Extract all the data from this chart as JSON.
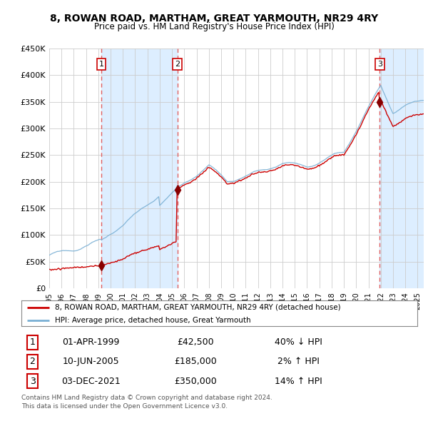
{
  "title": "8, ROWAN ROAD, MARTHAM, GREAT YARMOUTH, NR29 4RY",
  "subtitle": "Price paid vs. HM Land Registry's House Price Index (HPI)",
  "ylim": [
    0,
    450000
  ],
  "yticks": [
    0,
    50000,
    100000,
    150000,
    200000,
    250000,
    300000,
    350000,
    400000,
    450000
  ],
  "ytick_labels": [
    "£0",
    "£50K",
    "£100K",
    "£150K",
    "£200K",
    "£250K",
    "£300K",
    "£350K",
    "£400K",
    "£450K"
  ],
  "xlim": [
    1995,
    2025.5
  ],
  "sales": [
    {
      "date_num": 1999.25,
      "price": 42500,
      "label": "1"
    },
    {
      "date_num": 2005.44,
      "price": 185000,
      "label": "2"
    },
    {
      "date_num": 2021.92,
      "price": 350000,
      "label": "3"
    }
  ],
  "sale_vlines": [
    1999.25,
    2005.44,
    2021.92
  ],
  "legend_line1": "8, ROWAN ROAD, MARTHAM, GREAT YARMOUTH, NR29 4RY (detached house)",
  "legend_line2": "HPI: Average price, detached house, Great Yarmouth",
  "table_rows": [
    {
      "num": "1",
      "date": "01-APR-1999",
      "price": "£42,500",
      "hpi": "40% ↓ HPI"
    },
    {
      "num": "2",
      "date": "10-JUN-2005",
      "price": "£185,000",
      "hpi": "2% ↑ HPI"
    },
    {
      "num": "3",
      "date": "03-DEC-2021",
      "price": "£350,000",
      "hpi": "14% ↑ HPI"
    }
  ],
  "footer1": "Contains HM Land Registry data © Crown copyright and database right 2024.",
  "footer2": "This data is licensed under the Open Government Licence v3.0.",
  "line_color_red": "#cc0000",
  "line_color_blue": "#7ab0d4",
  "vline_color": "#e06060",
  "shade_color": "#ddeeff",
  "background_color": "#ffffff",
  "grid_color": "#cccccc"
}
